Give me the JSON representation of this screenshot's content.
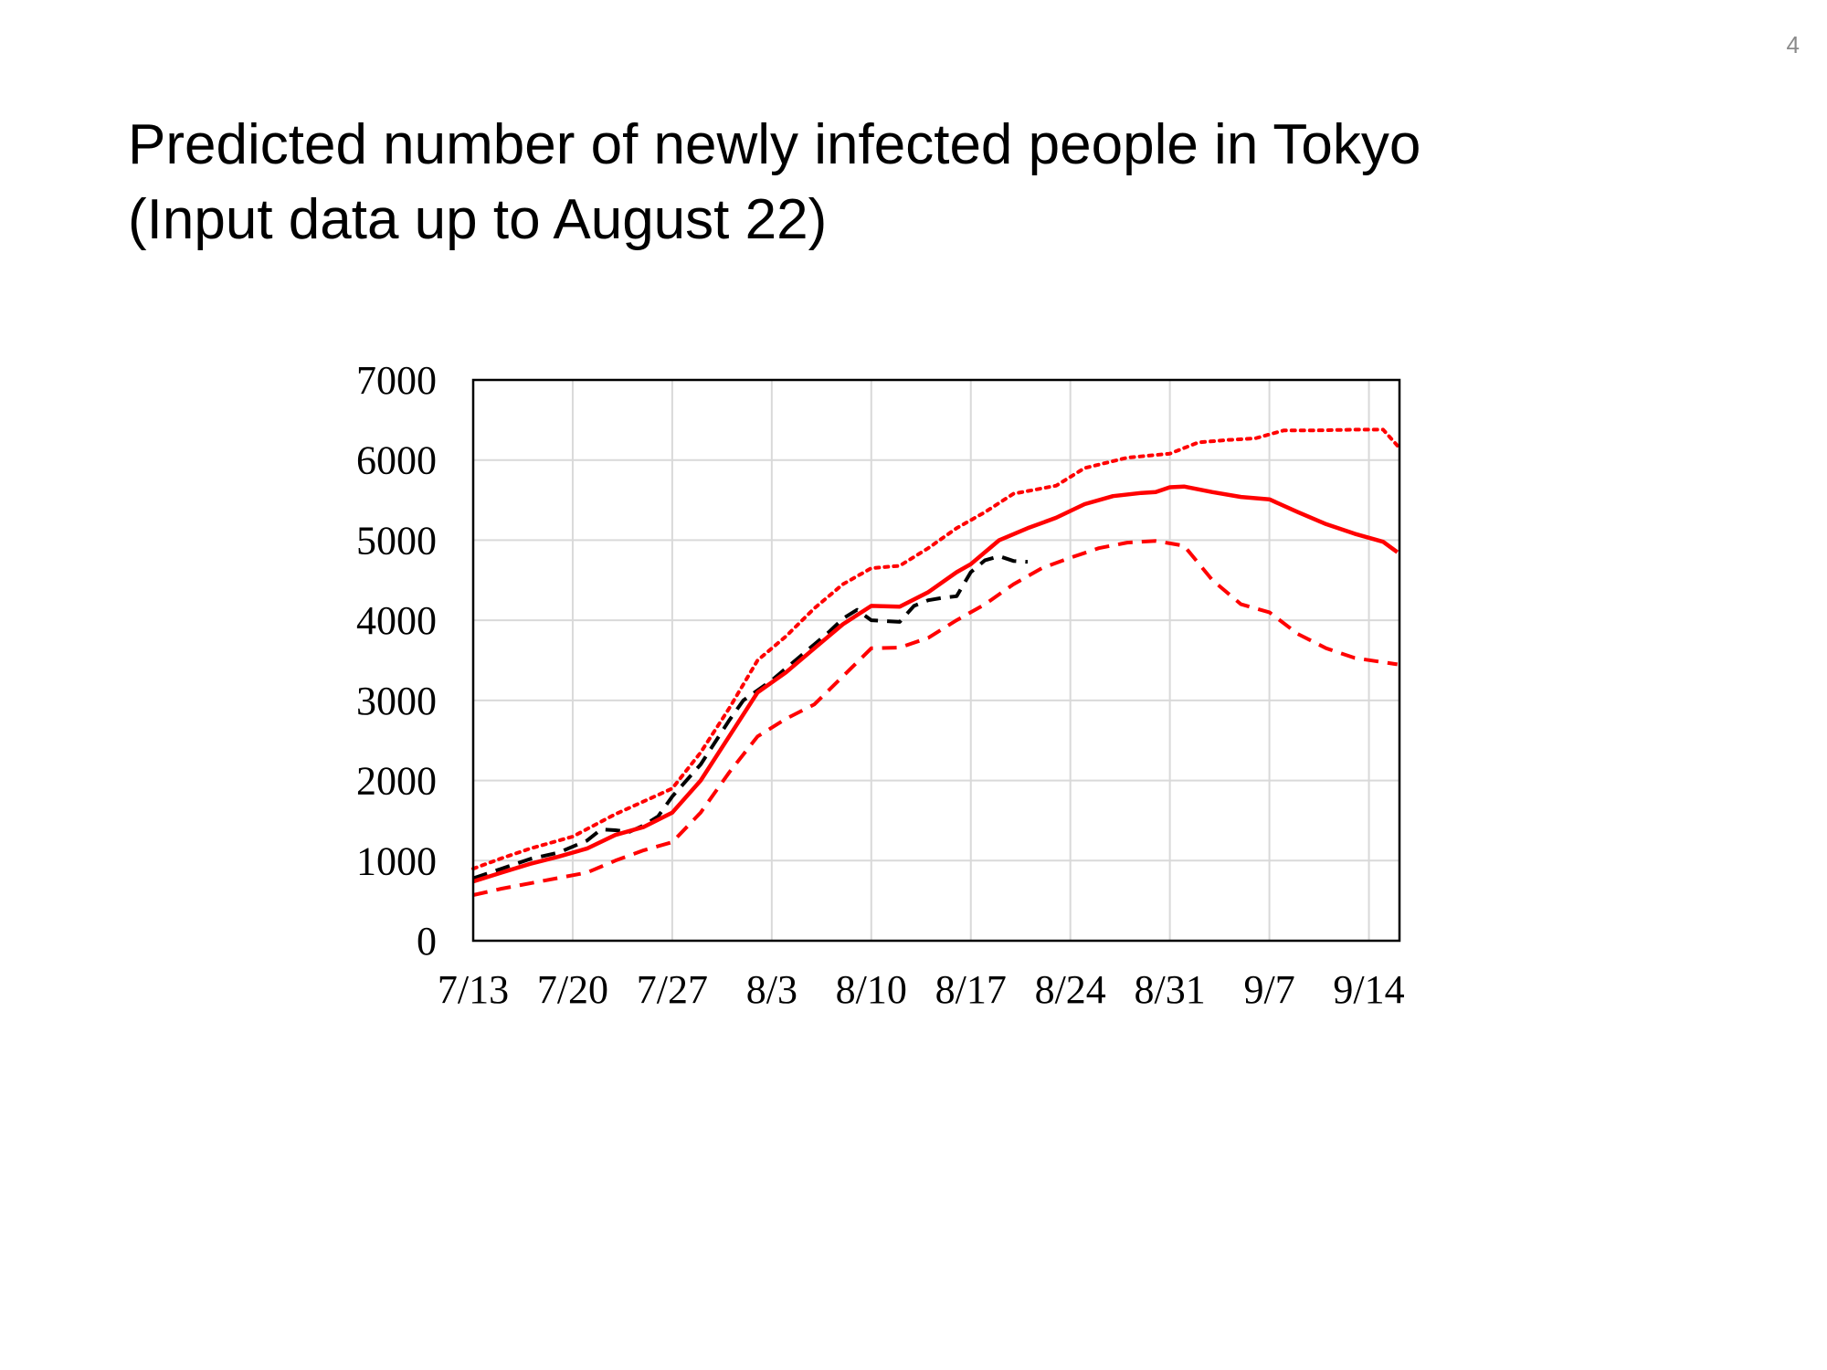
{
  "page": {
    "number": "4"
  },
  "title": {
    "line1": "Predicted number of newly infected people in Tokyo",
    "line2": "(Input data up to August 22)"
  },
  "chart_data": {
    "type": "line",
    "title": "Predicted number of newly infected people in Tokyo (Input data up to August 22)",
    "xlabel": "",
    "ylabel": "",
    "x_tick_labels": [
      "7/13",
      "7/20",
      "7/27",
      "8/3",
      "8/10",
      "8/17",
      "8/24",
      "8/31",
      "9/7",
      "9/14"
    ],
    "x_range": [
      "7/13",
      "9/14"
    ],
    "ylim": [
      0,
      7000
    ],
    "y_ticks": [
      0,
      1000,
      2000,
      3000,
      4000,
      5000,
      6000,
      7000
    ],
    "grid": true,
    "legend": "none",
    "series": [
      {
        "color": "#000000",
        "style": "dashed",
        "points": [
          [
            "7/13",
            780
          ],
          [
            "7/15",
            900
          ],
          [
            "7/17",
            1020
          ],
          [
            "7/19",
            1100
          ],
          [
            "7/21",
            1250
          ],
          [
            "7/22",
            1390
          ],
          [
            "7/23",
            1380
          ],
          [
            "7/24",
            1360
          ],
          [
            "7/25",
            1440
          ],
          [
            "7/26",
            1550
          ],
          [
            "7/27",
            1800
          ],
          [
            "7/29",
            2200
          ],
          [
            "7/31",
            2750
          ],
          [
            "8/1",
            3000
          ],
          [
            "8/3",
            3250
          ],
          [
            "8/5",
            3550
          ],
          [
            "8/7",
            3850
          ],
          [
            "8/8",
            4020
          ],
          [
            "8/9",
            4130
          ],
          [
            "8/10",
            4000
          ],
          [
            "8/11",
            3990
          ],
          [
            "8/12",
            3980
          ],
          [
            "8/13",
            4180
          ],
          [
            "8/14",
            4250
          ],
          [
            "8/15",
            4280
          ],
          [
            "8/16",
            4300
          ],
          [
            "8/17",
            4600
          ],
          [
            "8/18",
            4750
          ],
          [
            "8/19",
            4800
          ],
          [
            "8/20",
            4740
          ],
          [
            "8/21",
            4730
          ]
        ]
      },
      {
        "color": "#ff0000",
        "style": "solid",
        "points": [
          [
            "7/13",
            740
          ],
          [
            "7/15",
            850
          ],
          [
            "7/17",
            960
          ],
          [
            "7/19",
            1050
          ],
          [
            "7/21",
            1150
          ],
          [
            "7/23",
            1320
          ],
          [
            "7/25",
            1420
          ],
          [
            "7/27",
            1600
          ],
          [
            "7/29",
            2000
          ],
          [
            "7/31",
            2550
          ],
          [
            "8/2",
            3100
          ],
          [
            "8/4",
            3350
          ],
          [
            "8/6",
            3650
          ],
          [
            "8/8",
            3950
          ],
          [
            "8/10",
            4180
          ],
          [
            "8/12",
            4170
          ],
          [
            "8/14",
            4350
          ],
          [
            "8/16",
            4600
          ],
          [
            "8/17",
            4700
          ],
          [
            "8/19",
            5000
          ],
          [
            "8/21",
            5150
          ],
          [
            "8/23",
            5280
          ],
          [
            "8/25",
            5450
          ],
          [
            "8/27",
            5550
          ],
          [
            "8/29",
            5590
          ],
          [
            "8/30",
            5600
          ],
          [
            "8/31",
            5660
          ],
          [
            "9/1",
            5670
          ],
          [
            "9/3",
            5600
          ],
          [
            "9/5",
            5540
          ],
          [
            "9/7",
            5510
          ],
          [
            "9/9",
            5350
          ],
          [
            "9/11",
            5200
          ],
          [
            "9/13",
            5080
          ],
          [
            "9/15",
            4980
          ],
          [
            "9/16",
            4850
          ]
        ]
      },
      {
        "color": "#ff0000",
        "style": "dotted",
        "points": [
          [
            "7/13",
            900
          ],
          [
            "7/15",
            1030
          ],
          [
            "7/17",
            1150
          ],
          [
            "7/20",
            1300
          ],
          [
            "7/23",
            1580
          ],
          [
            "7/26",
            1820
          ],
          [
            "7/27",
            1900
          ],
          [
            "7/29",
            2350
          ],
          [
            "7/31",
            2900
          ],
          [
            "8/2",
            3500
          ],
          [
            "8/4",
            3800
          ],
          [
            "8/6",
            4150
          ],
          [
            "8/8",
            4450
          ],
          [
            "8/10",
            4650
          ],
          [
            "8/12",
            4680
          ],
          [
            "8/14",
            4900
          ],
          [
            "8/16",
            5150
          ],
          [
            "8/18",
            5350
          ],
          [
            "8/20",
            5580
          ],
          [
            "8/23",
            5680
          ],
          [
            "8/25",
            5900
          ],
          [
            "8/28",
            6030
          ],
          [
            "8/31",
            6080
          ],
          [
            "9/2",
            6220
          ],
          [
            "9/4",
            6250
          ],
          [
            "9/6",
            6270
          ],
          [
            "9/8",
            6370
          ],
          [
            "9/10",
            6370
          ],
          [
            "9/13",
            6380
          ],
          [
            "9/15",
            6380
          ],
          [
            "9/16",
            6180
          ]
        ]
      },
      {
        "color": "#ff0000",
        "style": "dashed",
        "points": [
          [
            "7/13",
            570
          ],
          [
            "7/15",
            650
          ],
          [
            "7/18",
            750
          ],
          [
            "7/21",
            850
          ],
          [
            "7/23",
            1000
          ],
          [
            "7/25",
            1130
          ],
          [
            "7/27",
            1230
          ],
          [
            "7/29",
            1600
          ],
          [
            "7/31",
            2100
          ],
          [
            "8/2",
            2550
          ],
          [
            "8/4",
            2770
          ],
          [
            "8/6",
            2950
          ],
          [
            "8/8",
            3300
          ],
          [
            "8/10",
            3650
          ],
          [
            "8/12",
            3660
          ],
          [
            "8/14",
            3780
          ],
          [
            "8/16",
            4000
          ],
          [
            "8/18",
            4200
          ],
          [
            "8/20",
            4450
          ],
          [
            "8/22",
            4650
          ],
          [
            "8/24",
            4780
          ],
          [
            "8/26",
            4900
          ],
          [
            "8/28",
            4970
          ],
          [
            "8/30",
            4990
          ],
          [
            "8/31",
            4960
          ],
          [
            "9/1",
            4930
          ],
          [
            "9/3",
            4500
          ],
          [
            "9/5",
            4200
          ],
          [
            "9/7",
            4100
          ],
          [
            "9/9",
            3830
          ],
          [
            "9/11",
            3650
          ],
          [
            "9/13",
            3530
          ],
          [
            "9/16",
            3450
          ]
        ]
      }
    ]
  }
}
